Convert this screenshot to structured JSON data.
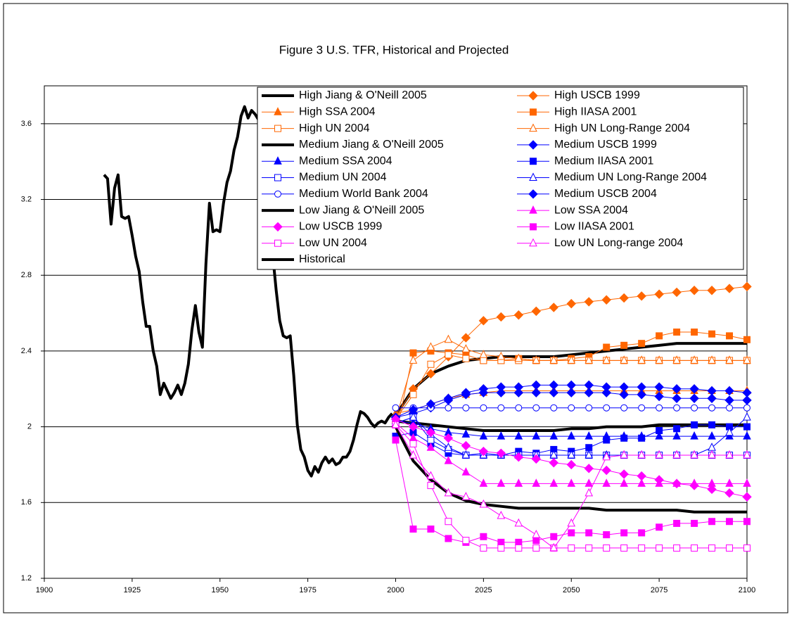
{
  "chart_data": {
    "type": "line",
    "title": "Figure 3 U.S. TFR, Historical and Projected",
    "xlim": [
      1900,
      2100
    ],
    "xticks": [
      1900,
      1925,
      1950,
      1975,
      2000,
      2025,
      2050,
      2075,
      2100
    ],
    "ylim": [
      1.2,
      3.8
    ],
    "yticks": [
      1.2,
      1.6,
      2.0,
      2.4,
      2.8,
      3.2,
      3.6
    ],
    "grid": true,
    "x": [
      2000,
      2005,
      2010,
      2015,
      2020,
      2025,
      2030,
      2035,
      2040,
      2045,
      2050,
      2055,
      2060,
      2065,
      2070,
      2075,
      2080,
      2085,
      2090,
      2095,
      2100
    ],
    "series": [
      {
        "name": "High Jiang & O'Neill 2005",
        "color": "#000000",
        "marker": "none",
        "width": 4,
        "values": [
          2.06,
          2.2,
          2.28,
          2.32,
          2.35,
          2.36,
          2.37,
          2.37,
          2.37,
          2.37,
          2.38,
          2.39,
          2.4,
          2.41,
          2.42,
          2.43,
          2.44,
          2.44,
          2.44,
          2.44,
          2.44
        ]
      },
      {
        "name": "High USCB 1999",
        "color": "#ff6600",
        "marker": "diamond",
        "width": 1,
        "values": [
          2.05,
          2.2,
          2.28,
          2.37,
          2.47,
          2.56,
          2.58,
          2.59,
          2.61,
          2.63,
          2.65,
          2.66,
          2.67,
          2.68,
          2.69,
          2.7,
          2.71,
          2.72,
          2.72,
          2.73,
          2.74
        ]
      },
      {
        "name": "High SSA 2004",
        "color": "#ff6600",
        "marker": "triangle",
        "width": 1,
        "values": [
          2.07,
          2.09,
          2.12,
          2.15,
          2.17,
          2.18,
          2.19,
          2.19,
          2.19,
          2.19,
          2.19,
          2.19,
          2.19,
          2.19,
          2.19,
          2.19,
          2.19,
          2.19,
          2.19,
          2.19,
          2.19
        ]
      },
      {
        "name": "High IIASA 2001",
        "color": "#ff6600",
        "marker": "square",
        "width": 1,
        "values": [
          1.95,
          2.39,
          2.4,
          2.39,
          2.38,
          2.35,
          2.35,
          2.36,
          2.35,
          2.35,
          2.36,
          2.37,
          2.42,
          2.43,
          2.44,
          2.48,
          2.5,
          2.5,
          2.49,
          2.48,
          2.46
        ]
      },
      {
        "name": "High UN 2004",
        "color": "#ff6600",
        "marker": "square-open",
        "width": 1,
        "values": [
          2.04,
          2.17,
          2.33,
          2.38,
          2.36,
          2.35,
          2.35,
          2.35,
          2.35,
          2.35,
          2.35,
          2.35,
          2.35,
          2.35,
          2.35,
          2.35,
          2.35,
          2.35,
          2.35,
          2.35,
          2.35
        ]
      },
      {
        "name": "High UN Long-Range 2004",
        "color": "#ff6600",
        "marker": "triangle-open",
        "width": 1,
        "values": [
          2.04,
          2.35,
          2.42,
          2.46,
          2.41,
          2.38,
          2.37,
          2.36,
          2.35,
          2.35,
          2.35,
          2.35,
          2.35,
          2.35,
          2.35,
          2.35,
          2.35,
          2.35,
          2.35,
          2.35,
          2.35
        ]
      },
      {
        "name": "Medium Jiang & O'Neill 2005",
        "color": "#000000",
        "marker": "none",
        "width": 4,
        "values": [
          2.03,
          2.02,
          2.01,
          2.0,
          1.99,
          1.98,
          1.98,
          1.98,
          1.98,
          1.98,
          1.99,
          1.99,
          2.0,
          2.0,
          2.0,
          2.01,
          2.01,
          2.01,
          2.01,
          2.01,
          2.01
        ]
      },
      {
        "name": "Medium USCB 1999",
        "color": "#0000ff",
        "marker": "diamond",
        "width": 1,
        "values": [
          2.05,
          2.07,
          2.1,
          2.14,
          2.17,
          2.18,
          2.18,
          2.18,
          2.18,
          2.18,
          2.18,
          2.18,
          2.18,
          2.17,
          2.17,
          2.16,
          2.15,
          2.15,
          2.15,
          2.14,
          2.14
        ]
      },
      {
        "name": "Medium SSA 2004",
        "color": "#0000ff",
        "marker": "triangle",
        "width": 1,
        "values": [
          2.03,
          2.02,
          1.99,
          1.97,
          1.96,
          1.95,
          1.95,
          1.95,
          1.95,
          1.95,
          1.95,
          1.95,
          1.95,
          1.95,
          1.95,
          1.95,
          1.95,
          1.95,
          1.95,
          1.95,
          1.95
        ]
      },
      {
        "name": "Medium IIASA 2001",
        "color": "#0000ff",
        "marker": "square",
        "width": 1,
        "values": [
          1.95,
          1.97,
          1.91,
          1.86,
          1.85,
          1.86,
          1.85,
          1.87,
          1.86,
          1.88,
          1.87,
          1.89,
          1.93,
          1.94,
          1.94,
          1.98,
          1.99,
          2.01,
          2.01,
          2.0,
          2.0
        ]
      },
      {
        "name": "Medium UN 2004",
        "color": "#0000ff",
        "marker": "square-open",
        "width": 1,
        "values": [
          2.02,
          2.05,
          1.93,
          1.88,
          1.85,
          1.85,
          1.85,
          1.85,
          1.85,
          1.85,
          1.85,
          1.85,
          1.85,
          1.85,
          1.85,
          1.85,
          1.85,
          1.85,
          1.85,
          1.85,
          1.85
        ]
      },
      {
        "name": "Medium UN Long-Range 2004",
        "color": "#0000ff",
        "marker": "triangle-open",
        "width": 1,
        "values": [
          2.02,
          2.05,
          1.96,
          1.89,
          1.85,
          1.85,
          1.85,
          1.85,
          1.85,
          1.85,
          1.85,
          1.85,
          1.85,
          1.85,
          1.85,
          1.85,
          1.85,
          1.85,
          1.89,
          1.97,
          2.05
        ]
      },
      {
        "name": "Medium World Bank 2004",
        "color": "#0000ff",
        "marker": "circle-open",
        "width": 1,
        "values": [
          2.1,
          2.1,
          2.1,
          2.1,
          2.1,
          2.1,
          2.1,
          2.1,
          2.1,
          2.1,
          2.1,
          2.1,
          2.1,
          2.1,
          2.1,
          2.1,
          2.1,
          2.1,
          2.1,
          2.1,
          2.1
        ]
      },
      {
        "name": "Medium USCB 2004",
        "color": "#0000ff",
        "marker": "diamond",
        "width": 1,
        "values": [
          2.05,
          2.09,
          2.12,
          2.15,
          2.18,
          2.2,
          2.21,
          2.21,
          2.22,
          2.22,
          2.22,
          2.22,
          2.21,
          2.21,
          2.21,
          2.21,
          2.2,
          2.2,
          2.19,
          2.19,
          2.18
        ]
      },
      {
        "name": "Low  Jiang & O'Neill 2005",
        "color": "#000000",
        "marker": "none",
        "width": 4,
        "values": [
          2.0,
          1.82,
          1.72,
          1.65,
          1.61,
          1.59,
          1.58,
          1.57,
          1.57,
          1.57,
          1.57,
          1.57,
          1.56,
          1.56,
          1.56,
          1.56,
          1.56,
          1.55,
          1.55,
          1.55,
          1.55
        ]
      },
      {
        "name": "Low  SSA 2004",
        "color": "#ff00ff",
        "marker": "triangle",
        "width": 1,
        "values": [
          2.02,
          1.94,
          1.89,
          1.82,
          1.76,
          1.7,
          1.7,
          1.7,
          1.7,
          1.7,
          1.7,
          1.7,
          1.7,
          1.7,
          1.7,
          1.7,
          1.7,
          1.7,
          1.7,
          1.7,
          1.7
        ]
      },
      {
        "name": "Low  USCB 1999",
        "color": "#ff00ff",
        "marker": "diamond",
        "width": 1,
        "values": [
          2.04,
          2.0,
          1.97,
          1.94,
          1.9,
          1.87,
          1.86,
          1.84,
          1.83,
          1.81,
          1.8,
          1.78,
          1.77,
          1.75,
          1.74,
          1.72,
          1.7,
          1.69,
          1.67,
          1.65,
          1.63
        ]
      },
      {
        "name": "Low  IIASA 2001",
        "color": "#ff00ff",
        "marker": "square",
        "width": 1,
        "values": [
          1.93,
          1.46,
          1.46,
          1.41,
          1.39,
          1.42,
          1.39,
          1.39,
          1.4,
          1.42,
          1.44,
          1.44,
          1.43,
          1.44,
          1.44,
          1.47,
          1.49,
          1.49,
          1.5,
          1.5,
          1.5
        ]
      },
      {
        "name": "Low  UN 2004",
        "color": "#ff00ff",
        "marker": "square-open",
        "width": 1,
        "values": [
          2.01,
          1.91,
          1.69,
          1.5,
          1.4,
          1.36,
          1.36,
          1.36,
          1.36,
          1.36,
          1.36,
          1.36,
          1.36,
          1.36,
          1.36,
          1.36,
          1.36,
          1.36,
          1.36,
          1.36,
          1.36
        ]
      },
      {
        "name": "Low  UN Long-range 2004",
        "color": "#ff00ff",
        "marker": "triangle-open",
        "width": 1,
        "values": [
          2.01,
          1.85,
          1.74,
          1.65,
          1.63,
          1.59,
          1.53,
          1.49,
          1.43,
          1.36,
          1.49,
          1.65,
          1.84,
          1.85,
          1.85,
          1.85,
          1.85,
          1.85,
          1.85,
          1.85,
          1.85
        ]
      },
      {
        "name": "Historical",
        "color": "#000000",
        "marker": "none",
        "width": 4,
        "x": [
          1917,
          1918,
          1919,
          1920,
          1921,
          1922,
          1923,
          1924,
          1925,
          1926,
          1927,
          1928,
          1929,
          1930,
          1931,
          1932,
          1933,
          1934,
          1935,
          1936,
          1937,
          1938,
          1939,
          1940,
          1941,
          1942,
          1943,
          1944,
          1945,
          1946,
          1947,
          1948,
          1949,
          1950,
          1951,
          1952,
          1953,
          1954,
          1955,
          1956,
          1957,
          1958,
          1959,
          1960,
          1961,
          1962,
          1963,
          1964,
          1965,
          1966,
          1967,
          1968,
          1969,
          1970,
          1971,
          1972,
          1973,
          1974,
          1975,
          1976,
          1977,
          1978,
          1979,
          1980,
          1981,
          1982,
          1983,
          1984,
          1985,
          1986,
          1987,
          1988,
          1989,
          1990,
          1991,
          1992,
          1993,
          1994,
          1995,
          1996,
          1997,
          1998,
          1999
        ],
        "values": [
          3.33,
          3.31,
          3.07,
          3.26,
          3.33,
          3.11,
          3.1,
          3.11,
          3.01,
          2.9,
          2.82,
          2.66,
          2.53,
          2.53,
          2.4,
          2.32,
          2.17,
          2.23,
          2.19,
          2.15,
          2.18,
          2.22,
          2.17,
          2.23,
          2.33,
          2.51,
          2.64,
          2.5,
          2.42,
          2.86,
          3.18,
          3.03,
          3.04,
          3.03,
          3.18,
          3.29,
          3.35,
          3.46,
          3.53,
          3.64,
          3.69,
          3.63,
          3.67,
          3.65,
          3.62,
          3.46,
          3.32,
          3.19,
          2.91,
          2.72,
          2.56,
          2.48,
          2.47,
          2.48,
          2.27,
          2.01,
          1.88,
          1.84,
          1.77,
          1.74,
          1.79,
          1.76,
          1.81,
          1.84,
          1.81,
          1.83,
          1.8,
          1.81,
          1.84,
          1.84,
          1.87,
          1.93,
          2.01,
          2.08,
          2.07,
          2.05,
          2.02,
          2.0,
          2.02,
          2.03,
          2.02,
          2.05,
          2.07
        ]
      }
    ]
  }
}
